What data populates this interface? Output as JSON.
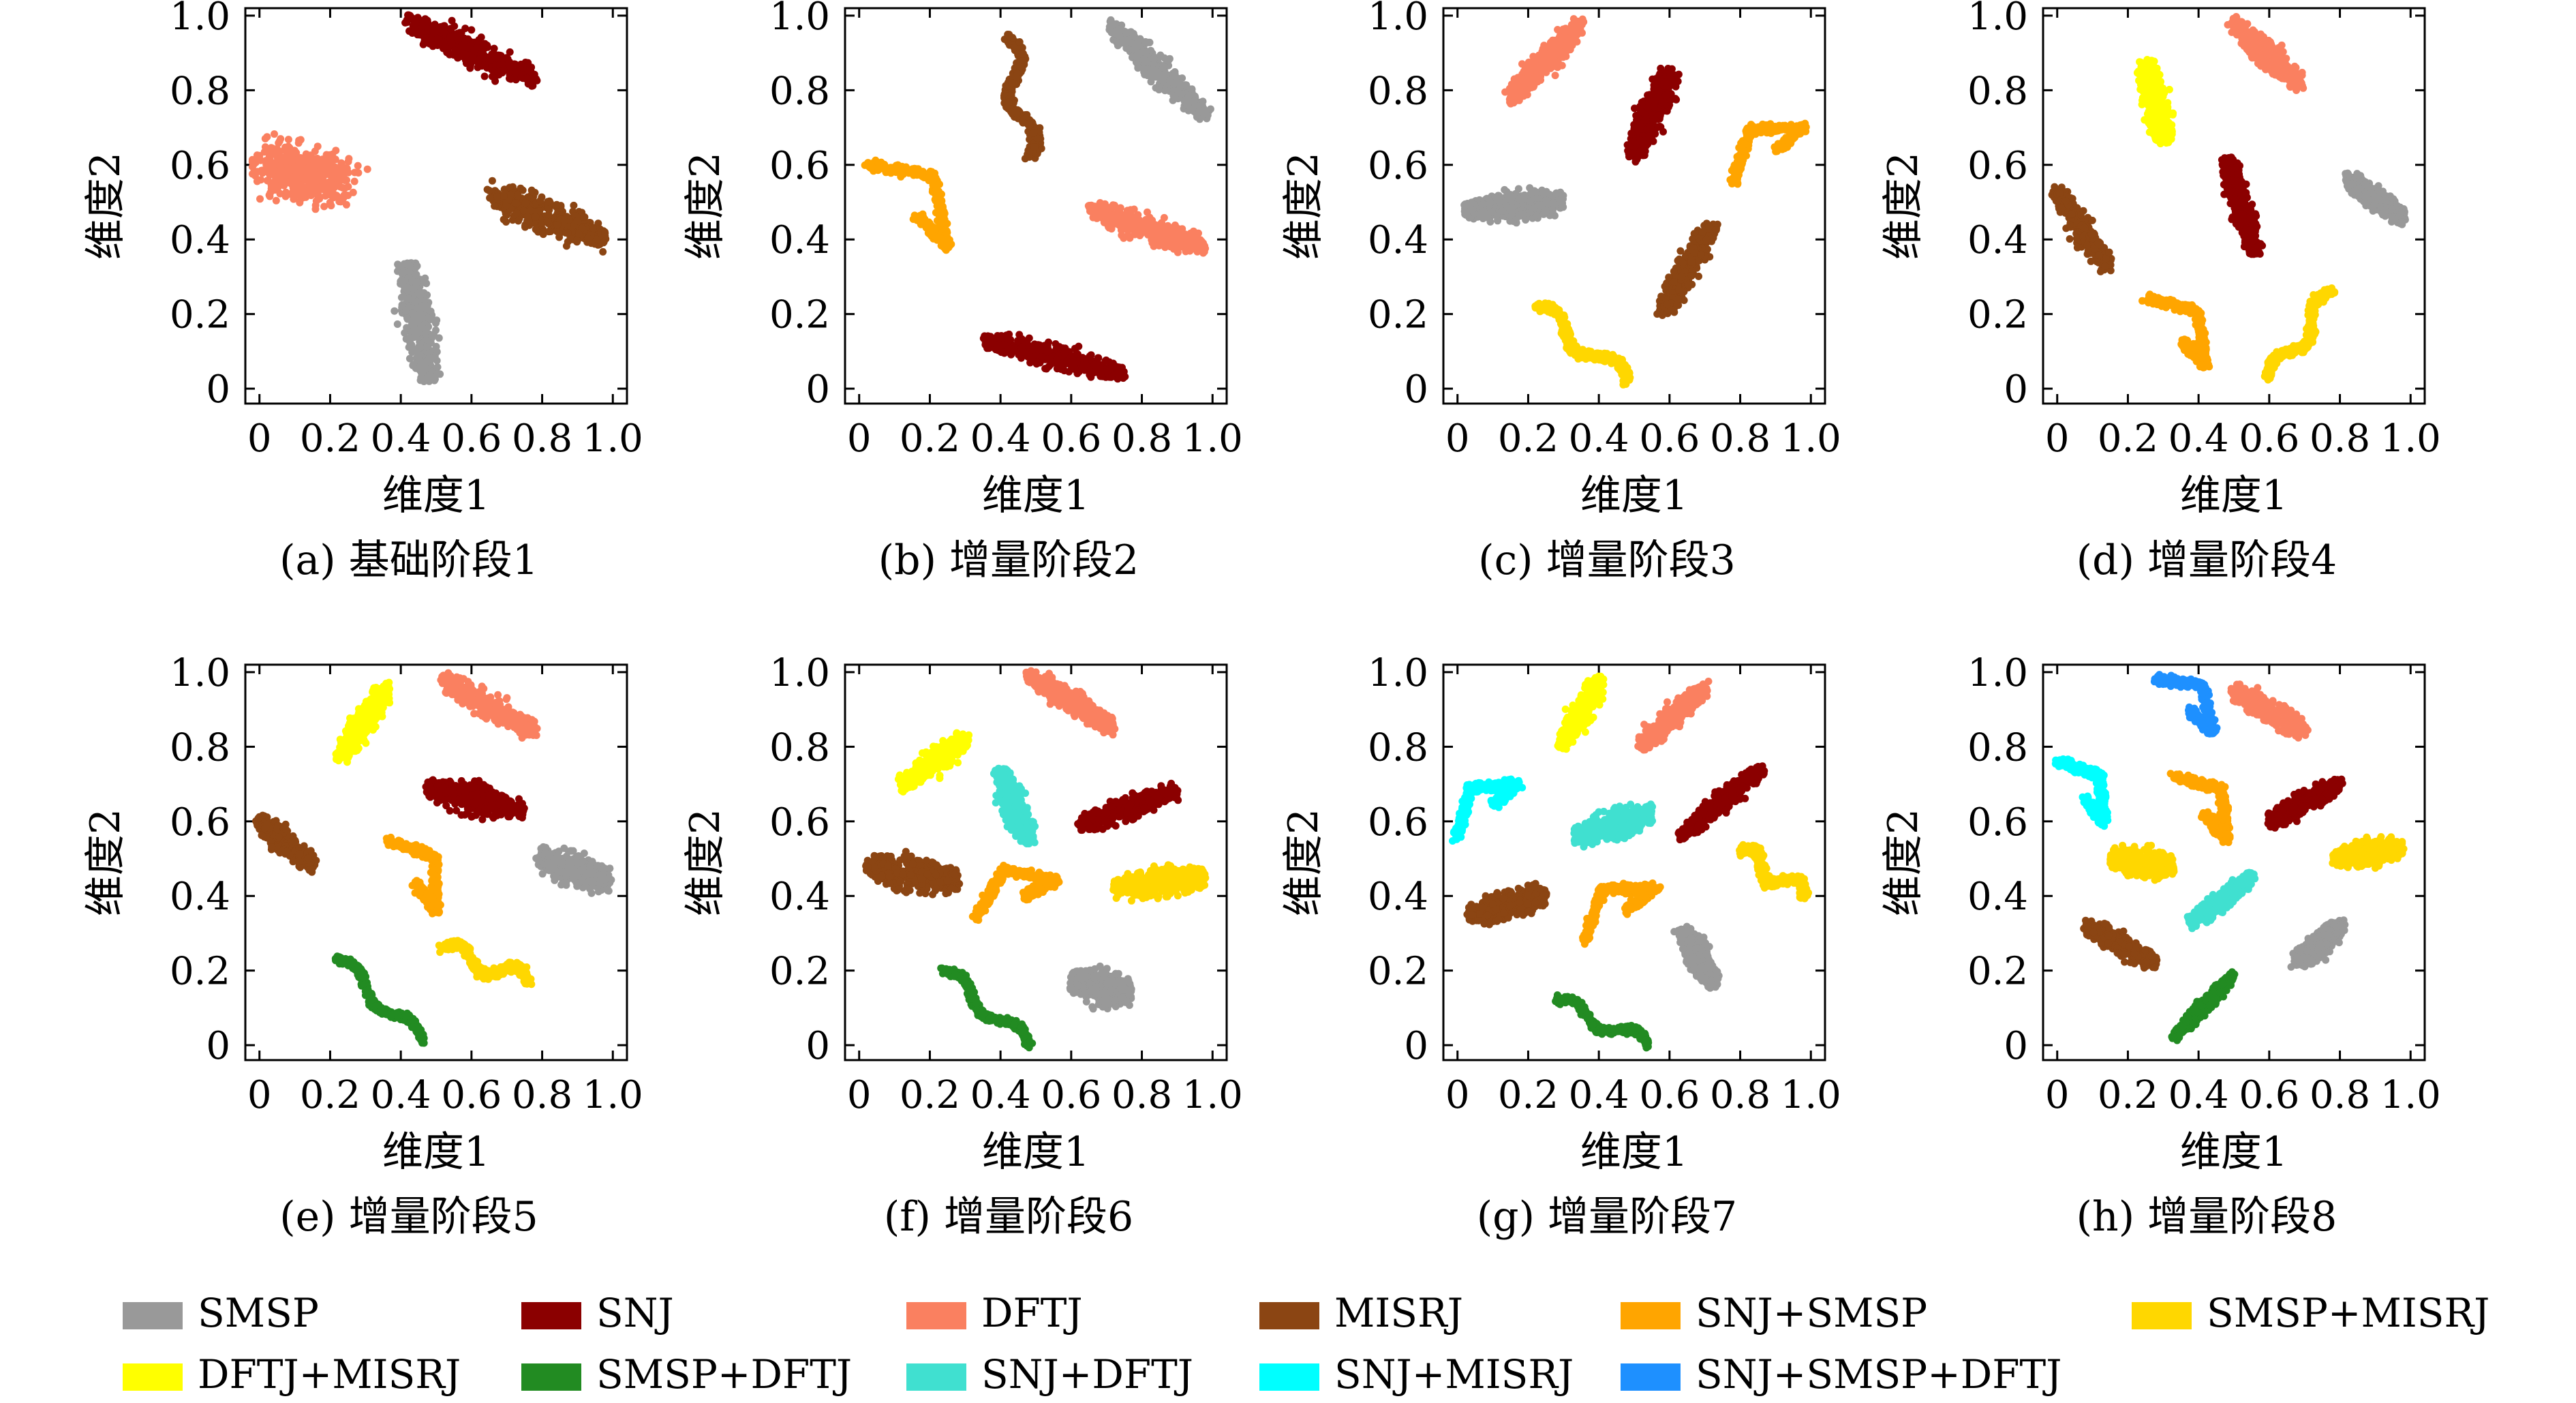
{
  "colors": {
    "SMSP": "#999999",
    "SNJ": "#8b0000",
    "DFTJ": "#fa8060",
    "MISRJ": "#8b4513",
    "SNJ+SMSP": "#ffa500",
    "SMSP+MISRJ": "#ffd700",
    "DFTJ+MISRJ": "#ffff00",
    "SMSP+DFTJ": "#228b22",
    "SNJ+DFTJ": "#40e0d0",
    "SNJ+MISRJ": "#00ffff",
    "SNJ+SMSP+DFTJ": "#1e90ff"
  },
  "legend": [
    "SMSP",
    "SNJ",
    "DFTJ",
    "MISRJ",
    "SNJ+SMSP",
    "SMSP+MISRJ",
    "DFTJ+MISRJ",
    "SMSP+DFTJ",
    "SNJ+DFTJ",
    "SNJ+MISRJ",
    "SNJ+SMSP+DFTJ"
  ],
  "chart_data": [
    {
      "type": "scatter",
      "caption": "(a) 基础阶段1",
      "xlabel": "维度1",
      "ylabel": "维度2",
      "xlim": [
        0,
        1
      ],
      "ylim": [
        0,
        1
      ],
      "xticks": [
        "0",
        "0.2",
        "0.4",
        "0.6",
        "0.8",
        "1.0"
      ],
      "yticks": [
        "0",
        "0.2",
        "0.4",
        "0.6",
        "0.8",
        "1.0"
      ],
      "clusters": [
        {
          "name": "SNJ",
          "x": [
            0.42,
            0.78
          ],
          "y": [
            0.98,
            0.83
          ],
          "w": 0.07
        },
        {
          "name": "DFTJ",
          "x": [
            0.02,
            0.25
          ],
          "y": [
            0.6,
            0.55
          ],
          "w": 0.12,
          "shape": "blob"
        },
        {
          "name": "MISRJ",
          "x": [
            0.65,
            0.98
          ],
          "y": [
            0.52,
            0.4
          ],
          "w": 0.08
        },
        {
          "name": "SMSP",
          "x": [
            0.42,
            0.48
          ],
          "y": [
            0.34,
            0.02
          ],
          "w": 0.07
        }
      ]
    },
    {
      "type": "scatter",
      "caption": "(b) 增量阶段2",
      "xlabel": "维度1",
      "ylabel": "维度2",
      "xlim": [
        0,
        1
      ],
      "ylim": [
        0,
        1
      ],
      "xticks": [
        "0",
        "0.2",
        "0.4",
        "0.6",
        "0.8",
        "1.0"
      ],
      "yticks": [
        "0",
        "0.2",
        "0.4",
        "0.6",
        "0.8",
        "1.0"
      ],
      "clusters": [
        {
          "name": "MISRJ",
          "x": [
            0.42,
            0.48
          ],
          "y": [
            0.94,
            0.62
          ],
          "w": 0.06,
          "shape": "zig"
        },
        {
          "name": "SMSP",
          "x": [
            0.72,
            0.98
          ],
          "y": [
            0.97,
            0.73
          ],
          "w": 0.07
        },
        {
          "name": "SNJ+SMSP",
          "x": [
            0.02,
            0.25
          ],
          "y": [
            0.6,
            0.38
          ],
          "w": 0.05,
          "shape": "hook"
        },
        {
          "name": "DFTJ",
          "x": [
            0.65,
            0.98
          ],
          "y": [
            0.48,
            0.38
          ],
          "w": 0.06
        },
        {
          "name": "SNJ",
          "x": [
            0.35,
            0.75
          ],
          "y": [
            0.13,
            0.04
          ],
          "w": 0.05
        }
      ]
    },
    {
      "type": "scatter",
      "caption": "(c) 增量阶段3",
      "xlabel": "维度1",
      "ylabel": "维度2",
      "xlim": [
        0,
        1
      ],
      "ylim": [
        0,
        1
      ],
      "xticks": [
        "0",
        "0.2",
        "0.4",
        "0.6",
        "0.8",
        "1.0"
      ],
      "yticks": [
        "0",
        "0.2",
        "0.4",
        "0.6",
        "0.8",
        "1.0"
      ],
      "clusters": [
        {
          "name": "DFTJ",
          "x": [
            0.15,
            0.35
          ],
          "y": [
            0.78,
            0.98
          ],
          "w": 0.07
        },
        {
          "name": "SNJ",
          "x": [
            0.5,
            0.6
          ],
          "y": [
            0.62,
            0.85
          ],
          "w": 0.07
        },
        {
          "name": "SNJ+SMSP",
          "x": [
            0.78,
            0.98
          ],
          "y": [
            0.55,
            0.7
          ],
          "w": 0.05,
          "shape": "hook"
        },
        {
          "name": "SMSP",
          "x": [
            0.02,
            0.3
          ],
          "y": [
            0.48,
            0.5
          ],
          "w": 0.06
        },
        {
          "name": "MISRJ",
          "x": [
            0.58,
            0.72
          ],
          "y": [
            0.2,
            0.44
          ],
          "w": 0.06
        },
        {
          "name": "SMSP+MISRJ",
          "x": [
            0.22,
            0.48
          ],
          "y": [
            0.22,
            0.02
          ],
          "w": 0.05,
          "shape": "zig"
        }
      ]
    },
    {
      "type": "scatter",
      "caption": "(d) 增量阶段4",
      "xlabel": "维度1",
      "ylabel": "维度2",
      "xlim": [
        0,
        1
      ],
      "ylim": [
        0,
        1
      ],
      "xticks": [
        "0",
        "0.2",
        "0.4",
        "0.6",
        "0.8",
        "1.0"
      ],
      "yticks": [
        "0",
        "0.2",
        "0.4",
        "0.6",
        "0.8",
        "1.0"
      ],
      "clusters": [
        {
          "name": "DFTJ",
          "x": [
            0.5,
            0.68
          ],
          "y": [
            0.98,
            0.82
          ],
          "w": 0.07
        },
        {
          "name": "DFTJ+MISRJ",
          "x": [
            0.25,
            0.3
          ],
          "y": [
            0.88,
            0.66
          ],
          "w": 0.06
        },
        {
          "name": "SNJ",
          "x": [
            0.48,
            0.56
          ],
          "y": [
            0.62,
            0.36
          ],
          "w": 0.05
        },
        {
          "name": "MISRJ",
          "x": [
            0.0,
            0.14
          ],
          "y": [
            0.53,
            0.33
          ],
          "w": 0.06
        },
        {
          "name": "SMSP",
          "x": [
            0.82,
            0.98
          ],
          "y": [
            0.56,
            0.46
          ],
          "w": 0.06
        },
        {
          "name": "SNJ+SMSP",
          "x": [
            0.25,
            0.42
          ],
          "y": [
            0.24,
            0.06
          ],
          "w": 0.05,
          "shape": "hook"
        },
        {
          "name": "SMSP+MISRJ",
          "x": [
            0.6,
            0.78
          ],
          "y": [
            0.02,
            0.26
          ],
          "w": 0.05,
          "shape": "zig"
        }
      ]
    },
    {
      "type": "scatter",
      "caption": "(e) 增量阶段5",
      "xlabel": "维度1",
      "ylabel": "维度2",
      "xlim": [
        0,
        1
      ],
      "ylim": [
        0,
        1
      ],
      "xticks": [
        "0",
        "0.2",
        "0.4",
        "0.6",
        "0.8",
        "1.0"
      ],
      "yticks": [
        "0",
        "0.2",
        "0.4",
        "0.6",
        "0.8",
        "1.0"
      ],
      "clusters": [
        {
          "name": "DFTJ+MISRJ",
          "x": [
            0.23,
            0.36
          ],
          "y": [
            0.77,
            0.96
          ],
          "w": 0.06
        },
        {
          "name": "DFTJ",
          "x": [
            0.52,
            0.78
          ],
          "y": [
            0.98,
            0.84
          ],
          "w": 0.06
        },
        {
          "name": "SNJ",
          "x": [
            0.47,
            0.75
          ],
          "y": [
            0.69,
            0.63
          ],
          "w": 0.06
        },
        {
          "name": "MISRJ",
          "x": [
            0.0,
            0.15
          ],
          "y": [
            0.6,
            0.48
          ],
          "w": 0.06
        },
        {
          "name": "SNJ+SMSP",
          "x": [
            0.36,
            0.5
          ],
          "y": [
            0.55,
            0.36
          ],
          "w": 0.05,
          "shape": "hook"
        },
        {
          "name": "SMSP",
          "x": [
            0.79,
            0.99
          ],
          "y": [
            0.5,
            0.44
          ],
          "w": 0.07
        },
        {
          "name": "SMSP+MISRJ",
          "x": [
            0.52,
            0.76
          ],
          "y": [
            0.26,
            0.17
          ],
          "w": 0.05,
          "shape": "zig"
        },
        {
          "name": "SMSP+DFTJ",
          "x": [
            0.22,
            0.46
          ],
          "y": [
            0.23,
            0.01
          ],
          "w": 0.04,
          "shape": "zig"
        }
      ]
    },
    {
      "type": "scatter",
      "caption": "(f) 增量阶段6",
      "xlabel": "维度1",
      "ylabel": "维度2",
      "xlim": [
        0,
        1
      ],
      "ylim": [
        0,
        1
      ],
      "xticks": [
        "0",
        "0.2",
        "0.4",
        "0.6",
        "0.8",
        "1.0"
      ],
      "yticks": [
        "0",
        "0.2",
        "0.4",
        "0.6",
        "0.8",
        "1.0"
      ],
      "clusters": [
        {
          "name": "DFTJ",
          "x": [
            0.48,
            0.72
          ],
          "y": [
            0.99,
            0.85
          ],
          "w": 0.06
        },
        {
          "name": "DFTJ+MISRJ",
          "x": [
            0.12,
            0.3
          ],
          "y": [
            0.7,
            0.82
          ],
          "w": 0.06
        },
        {
          "name": "SNJ+DFTJ",
          "x": [
            0.4,
            0.48
          ],
          "y": [
            0.74,
            0.54
          ],
          "w": 0.06
        },
        {
          "name": "SNJ",
          "x": [
            0.62,
            0.9
          ],
          "y": [
            0.59,
            0.68
          ],
          "w": 0.05
        },
        {
          "name": "MISRJ",
          "x": [
            0.02,
            0.28
          ],
          "y": [
            0.48,
            0.44
          ],
          "w": 0.07
        },
        {
          "name": "SMSP+MISRJ",
          "x": [
            0.72,
            0.98
          ],
          "y": [
            0.42,
            0.45
          ],
          "w": 0.06
        },
        {
          "name": "SNJ+SMSP",
          "x": [
            0.33,
            0.56
          ],
          "y": [
            0.34,
            0.44
          ],
          "w": 0.05,
          "shape": "hook"
        },
        {
          "name": "SMSP",
          "x": [
            0.6,
            0.77
          ],
          "y": [
            0.17,
            0.14
          ],
          "w": 0.07
        },
        {
          "name": "SMSP+DFTJ",
          "x": [
            0.24,
            0.48
          ],
          "y": [
            0.2,
            0.0
          ],
          "w": 0.04,
          "shape": "zig"
        }
      ]
    },
    {
      "type": "scatter",
      "caption": "(g) 增量阶段7",
      "xlabel": "维度1",
      "ylabel": "维度2",
      "xlim": [
        0,
        1
      ],
      "ylim": [
        0,
        1
      ],
      "xticks": [
        "0",
        "0.2",
        "0.4",
        "0.6",
        "0.8",
        "1.0"
      ],
      "yticks": [
        "0",
        "0.2",
        "0.4",
        "0.6",
        "0.8",
        "1.0"
      ],
      "clusters": [
        {
          "name": "DFTJ+MISRJ",
          "x": [
            0.3,
            0.4
          ],
          "y": [
            0.8,
            0.98
          ],
          "w": 0.06
        },
        {
          "name": "DFTJ",
          "x": [
            0.52,
            0.7
          ],
          "y": [
            0.8,
            0.96
          ],
          "w": 0.06
        },
        {
          "name": "SNJ",
          "x": [
            0.63,
            0.86
          ],
          "y": [
            0.56,
            0.74
          ],
          "w": 0.05
        },
        {
          "name": "SNJ+MISRJ",
          "x": [
            0.0,
            0.17
          ],
          "y": [
            0.56,
            0.7
          ],
          "w": 0.05,
          "shape": "hook"
        },
        {
          "name": "SNJ+DFTJ",
          "x": [
            0.33,
            0.55
          ],
          "y": [
            0.56,
            0.62
          ],
          "w": 0.06
        },
        {
          "name": "SMSP+MISRJ",
          "x": [
            0.8,
            0.98
          ],
          "y": [
            0.52,
            0.4
          ],
          "w": 0.05,
          "shape": "zig"
        },
        {
          "name": "MISRJ",
          "x": [
            0.03,
            0.25
          ],
          "y": [
            0.35,
            0.4
          ],
          "w": 0.06
        },
        {
          "name": "SNJ+SMSP",
          "x": [
            0.36,
            0.56
          ],
          "y": [
            0.28,
            0.42
          ],
          "w": 0.05,
          "shape": "hook"
        },
        {
          "name": "SMSP",
          "x": [
            0.64,
            0.72
          ],
          "y": [
            0.31,
            0.16
          ],
          "w": 0.06
        },
        {
          "name": "SMSP+DFTJ",
          "x": [
            0.28,
            0.54
          ],
          "y": [
            0.12,
            0.0
          ],
          "w": 0.04,
          "shape": "zig"
        }
      ]
    },
    {
      "type": "scatter",
      "caption": "(h) 增量阶段8",
      "xlabel": "维度1",
      "ylabel": "维度2",
      "xlim": [
        0,
        1
      ],
      "ylim": [
        0,
        1
      ],
      "xticks": [
        "0",
        "0.2",
        "0.4",
        "0.6",
        "0.8",
        "1.0"
      ],
      "yticks": [
        "0",
        "0.2",
        "0.4",
        "0.6",
        "0.8",
        "1.0"
      ],
      "clusters": [
        {
          "name": "SNJ+SMSP+DFTJ",
          "x": [
            0.28,
            0.44
          ],
          "y": [
            0.98,
            0.84
          ],
          "w": 0.05,
          "shape": "hook"
        },
        {
          "name": "DFTJ",
          "x": [
            0.5,
            0.7
          ],
          "y": [
            0.95,
            0.84
          ],
          "w": 0.06
        },
        {
          "name": "SNJ+MISRJ",
          "x": [
            0.0,
            0.13
          ],
          "y": [
            0.76,
            0.6
          ],
          "w": 0.05,
          "shape": "hook"
        },
        {
          "name": "SNJ+SMSP",
          "x": [
            0.33,
            0.48
          ],
          "y": [
            0.72,
            0.55
          ],
          "w": 0.05,
          "shape": "hook"
        },
        {
          "name": "SNJ",
          "x": [
            0.6,
            0.8
          ],
          "y": [
            0.6,
            0.7
          ],
          "w": 0.05
        },
        {
          "name": "SMSP+MISRJ",
          "x": [
            0.15,
            0.33
          ],
          "y": [
            0.5,
            0.48
          ],
          "w": 0.06
        },
        {
          "name": "SMSP+MISRJ",
          "x": [
            0.78,
            0.98
          ],
          "y": [
            0.5,
            0.53
          ],
          "w": 0.05
        },
        {
          "name": "SNJ+DFTJ",
          "x": [
            0.38,
            0.55
          ],
          "y": [
            0.33,
            0.45
          ],
          "w": 0.05
        },
        {
          "name": "MISRJ",
          "x": [
            0.08,
            0.28
          ],
          "y": [
            0.32,
            0.22
          ],
          "w": 0.05
        },
        {
          "name": "SMSP",
          "x": [
            0.68,
            0.8
          ],
          "y": [
            0.22,
            0.32
          ],
          "w": 0.06
        },
        {
          "name": "SMSP+DFTJ",
          "x": [
            0.33,
            0.5
          ],
          "y": [
            0.02,
            0.19
          ],
          "w": 0.04
        }
      ]
    }
  ]
}
